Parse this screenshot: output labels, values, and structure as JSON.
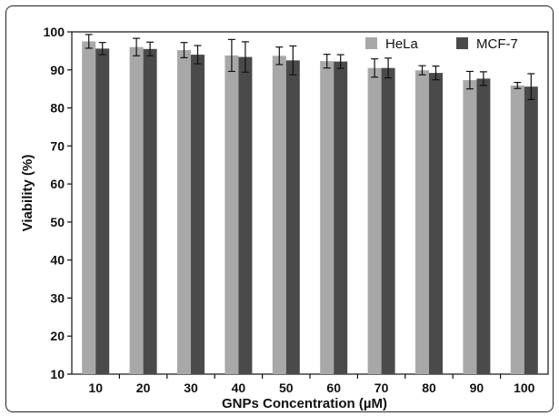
{
  "chart_data": {
    "type": "bar",
    "categories": [
      "10",
      "20",
      "30",
      "40",
      "50",
      "60",
      "70",
      "80",
      "90",
      "100"
    ],
    "series": [
      {
        "name": "HeLa",
        "color": "#a8a8a8",
        "values": [
          97.5,
          96.0,
          95.2,
          93.8,
          93.7,
          92.3,
          90.5,
          89.9,
          87.3,
          85.9
        ],
        "errors": [
          1.8,
          2.3,
          2.0,
          4.2,
          2.3,
          1.8,
          2.4,
          1.2,
          2.3,
          0.8
        ]
      },
      {
        "name": "MCF-7",
        "color": "#4a4a4a",
        "values": [
          95.6,
          95.5,
          94.0,
          93.4,
          92.5,
          92.2,
          90.5,
          89.2,
          87.7,
          85.6
        ],
        "errors": [
          1.6,
          1.8,
          2.4,
          4.0,
          3.8,
          1.8,
          2.6,
          1.8,
          1.8,
          3.4
        ]
      }
    ],
    "xlabel": "GNPs Concentration (µM)",
    "ylabel": "Viability (%)",
    "ylim": [
      10,
      100
    ],
    "yticks": [
      10,
      20,
      30,
      40,
      50,
      60,
      70,
      80,
      90,
      100
    ],
    "grid": false,
    "legend": "top-right"
  }
}
